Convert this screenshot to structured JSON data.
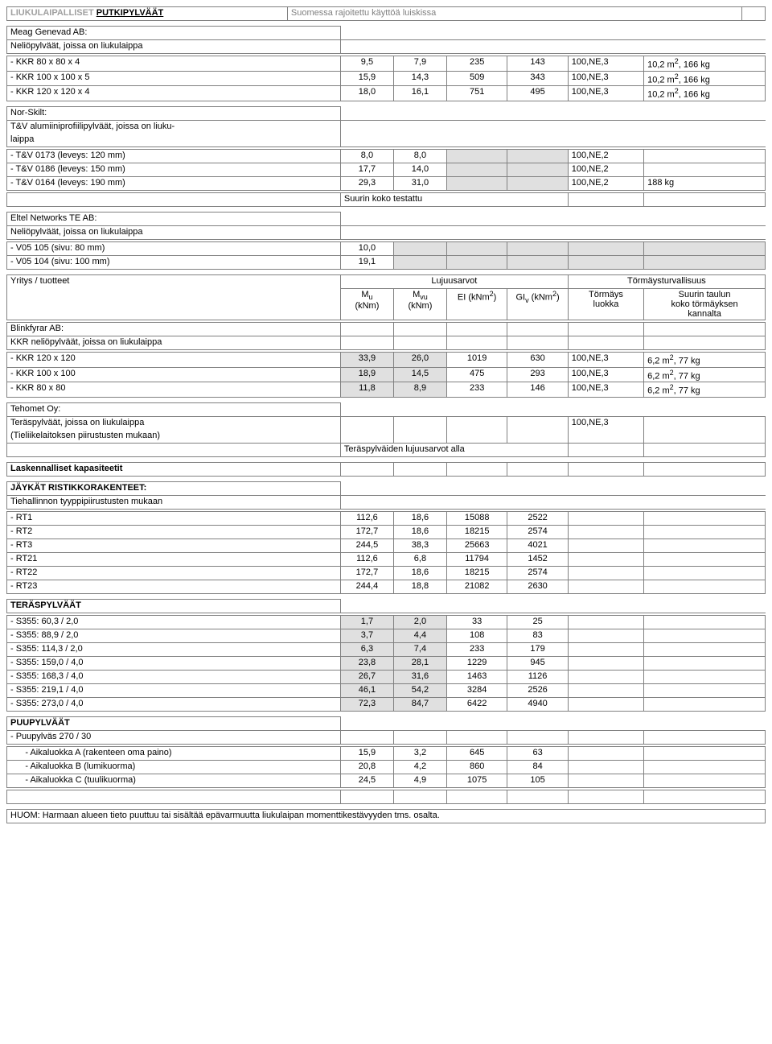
{
  "header": {
    "left_gray": "LIUKULAIPALLISET",
    "left_bold": "PUTKIPYLVÄÄT",
    "right": "Suomessa rajoitettu käyttöä luiskissa"
  },
  "meag": {
    "title1": "Meag Genevad AB:",
    "title2": "Neliöpylväät, joissa on liukulaippa",
    "rows": [
      {
        "label": "- KKR 80 x 80 x 4",
        "v": [
          "9,5",
          "7,9",
          "235",
          "143",
          "100,NE,3",
          "10,2 m², 166 kg"
        ]
      },
      {
        "label": "- KKR 100 x 100 x 5",
        "v": [
          "15,9",
          "14,3",
          "509",
          "343",
          "100,NE,3",
          "10,2 m², 166 kg"
        ]
      },
      {
        "label": "- KKR 120 x 120 x 4",
        "v": [
          "18,0",
          "16,1",
          "751",
          "495",
          "100,NE,3",
          "10,2 m², 166 kg"
        ]
      }
    ]
  },
  "norskilt": {
    "title1": "Nor-Skilt:",
    "title2": "T&V alumiiniprofiilipylväät, joissa on liuku-",
    "title3": "laippa",
    "rows": [
      {
        "label": "- T&V 0173 (leveys: 120 mm)",
        "v": [
          "8,0",
          "8,0",
          "",
          "",
          "100,NE,2",
          ""
        ],
        "shade": [
          2,
          3
        ]
      },
      {
        "label": "- T&V 0186 (leveys: 150 mm)",
        "v": [
          "17,7",
          "14,0",
          "",
          "",
          "100,NE,2",
          ""
        ],
        "shade": [
          2,
          3
        ]
      },
      {
        "label": "- T&V 0164 (leveys: 190 mm)",
        "v": [
          "29,3",
          "31,0",
          "",
          "",
          "100,NE,2",
          "188 kg"
        ],
        "shade": [
          2,
          3
        ]
      }
    ],
    "note": "Suurin koko testattu"
  },
  "eltel": {
    "title1": "Eltel Networks TE AB:",
    "title2": "Neliöpylväät, joissa on liukulaippa",
    "rows": [
      {
        "label": "- V05 105 (sivu: 80 mm)",
        "v": [
          "10,0",
          "",
          "",
          "",
          "",
          ""
        ],
        "shade": [
          1,
          2,
          3,
          4,
          5
        ]
      },
      {
        "label": "- V05 104 (sivu: 100 mm)",
        "v": [
          "19,1",
          "",
          "",
          "",
          "",
          ""
        ],
        "shade": [
          1,
          2,
          3,
          4,
          5
        ]
      }
    ]
  },
  "header2": {
    "col0": "Yritys / tuotteet",
    "lujuus": "Lujuusarvot",
    "torm": "Törmäysturvallisuus",
    "mu": "Mᵤ (kNm)",
    "mvu": "Mᵥᵤ (kNm)",
    "ei": "EI (kNm²)",
    "gi": "GIᵥ (kNm²)",
    "tl": "Törmäys luokka",
    "st": "Suurin taulun koko törmäyksen kannalta"
  },
  "blinkfyrar": {
    "title1": "Blinkfyrar AB:",
    "title2": "KKR neliöpylväät, joissa on liukulaippa",
    "rows": [
      {
        "label": "- KKR 120 x 120",
        "v": [
          "33,9",
          "26,0",
          "1019",
          "630",
          "100,NE,3",
          "6,2 m², 77 kg"
        ],
        "shade": [
          0,
          1
        ]
      },
      {
        "label": "- KKR 100 x 100",
        "v": [
          "18,9",
          "14,5",
          "475",
          "293",
          "100,NE,3",
          "6,2 m², 77 kg"
        ],
        "shade": [
          0,
          1
        ]
      },
      {
        "label": "- KKR 80 x 80",
        "v": [
          "11,8",
          "8,9",
          "233",
          "146",
          "100,NE,3",
          "6,2 m², 77 kg"
        ],
        "shade": [
          0,
          1
        ]
      }
    ]
  },
  "tehomet": {
    "title1": "Tehomet Oy:",
    "title2": "Teräspylväät, joissa on liukulaippa",
    "title3": "(Tieliikelaitoksen piirustusten mukaan)",
    "note": "Teräspylväiden lujuusarvot alla",
    "class": "100,NE,3"
  },
  "lask": "Laskennalliset kapasiteetit",
  "jaykat": {
    "title1": "JÄYKÄT RISTIKKORAKENTEET:",
    "title2": "Tiehallinnon tyyppipiirustusten mukaan",
    "rows": [
      {
        "label": "- RT1",
        "v": [
          "112,6",
          "18,6",
          "15088",
          "2522",
          "",
          ""
        ]
      },
      {
        "label": "- RT2",
        "v": [
          "172,7",
          "18,6",
          "18215",
          "2574",
          "",
          ""
        ]
      },
      {
        "label": "- RT3",
        "v": [
          "244,5",
          "38,3",
          "25663",
          "4021",
          "",
          ""
        ]
      },
      {
        "label": "- RT21",
        "v": [
          "112,6",
          "6,8",
          "11794",
          "1452",
          "",
          ""
        ]
      },
      {
        "label": "- RT22",
        "v": [
          "172,7",
          "18,6",
          "18215",
          "2574",
          "",
          ""
        ]
      },
      {
        "label": "- RT23",
        "v": [
          "244,4",
          "18,8",
          "21082",
          "2630",
          "",
          ""
        ]
      }
    ]
  },
  "teras": {
    "title": "TERÄSPYLVÄÄT",
    "rows": [
      {
        "label": "- S355:  60,3 / 2,0",
        "v": [
          "1,7",
          "2,0",
          "33",
          "25",
          "",
          ""
        ],
        "shade": [
          0,
          1
        ]
      },
      {
        "label": "- S355:  88,9 / 2,0",
        "v": [
          "3,7",
          "4,4",
          "108",
          "83",
          "",
          ""
        ],
        "shade": [
          0,
          1
        ]
      },
      {
        "label": "- S355:  114,3 / 2,0",
        "v": [
          "6,3",
          "7,4",
          "233",
          "179",
          "",
          ""
        ],
        "shade": [
          0,
          1
        ]
      },
      {
        "label": "- S355:  159,0 / 4,0",
        "v": [
          "23,8",
          "28,1",
          "1229",
          "945",
          "",
          ""
        ],
        "shade": [
          0,
          1
        ]
      },
      {
        "label": "- S355:  168,3 / 4,0",
        "v": [
          "26,7",
          "31,6",
          "1463",
          "1126",
          "",
          ""
        ],
        "shade": [
          0,
          1
        ]
      },
      {
        "label": "- S355:  219,1 / 4,0",
        "v": [
          "46,1",
          "54,2",
          "3284",
          "2526",
          "",
          ""
        ],
        "shade": [
          0,
          1
        ]
      },
      {
        "label": "- S355:  273,0 / 4,0",
        "v": [
          "72,3",
          "84,7",
          "6422",
          "4940",
          "",
          ""
        ],
        "shade": [
          0,
          1
        ]
      }
    ]
  },
  "puu": {
    "title": "PUUPYLVÄÄT",
    "sub": "- Puupylväs 270 / 30",
    "rows": [
      {
        "label": "   - Aikaluokka A (rakenteen oma paino)",
        "v": [
          "15,9",
          "3,2",
          "645",
          "63",
          "",
          ""
        ]
      },
      {
        "label": "   - Aikaluokka B (lumikuorma)",
        "v": [
          "20,8",
          "4,2",
          "860",
          "84",
          "",
          ""
        ]
      },
      {
        "label": "   - Aikaluokka C (tuulikuorma)",
        "v": [
          "24,5",
          "4,9",
          "1075",
          "105",
          "",
          ""
        ]
      }
    ]
  },
  "footer": "HUOM: Harmaan alueen tieto puuttuu tai sisältää epävarmuutta liukulaipan momenttikestävyyden tms. osalta."
}
